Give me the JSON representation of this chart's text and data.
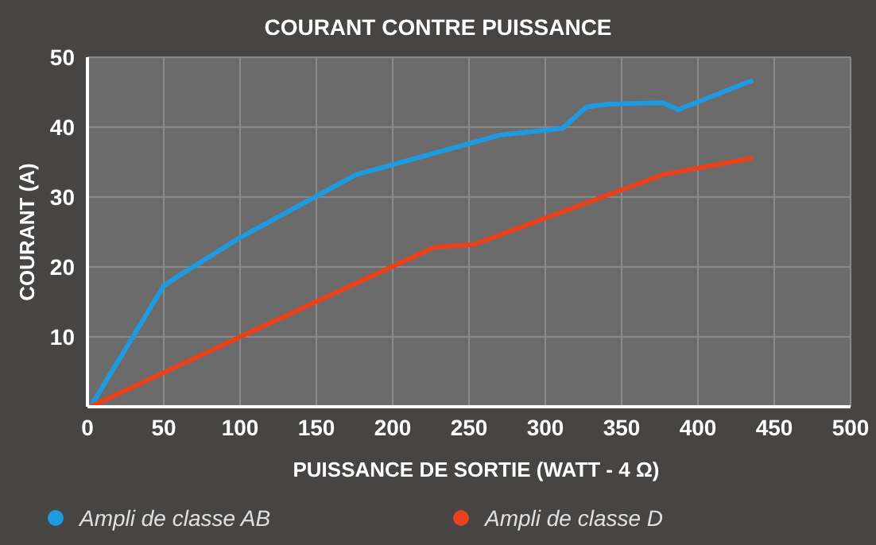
{
  "chart_data": {
    "type": "line",
    "title": "COURANT CONTRE PUISSANCE",
    "xlabel": "PUISSANCE DE SORTIE (WATT - 4 Ω)",
    "ylabel": "COURANT (A)",
    "series": [
      {
        "name": "Ampli de classe AB",
        "color": "#1e9be0",
        "x": [
          2,
          50,
          61,
          100,
          176,
          271,
          311,
          327,
          342,
          377,
          387,
          436
        ],
        "values": [
          0,
          17.3,
          18.9,
          24.2,
          33.2,
          38.9,
          39.8,
          42.9,
          43.3,
          43.5,
          42.5,
          46.7
        ]
      },
      {
        "name": "Ampli de classe D",
        "color": "#e8421c",
        "x": [
          2,
          100,
          227,
          253,
          377,
          436
        ],
        "values": [
          0,
          10,
          22.8,
          23.2,
          33.2,
          35.6
        ]
      }
    ],
    "xlim": [
      0,
      500
    ],
    "xticks": [
      0,
      50,
      100,
      150,
      200,
      250,
      300,
      350,
      400,
      450,
      500
    ],
    "ylim": [
      0,
      50
    ],
    "yticks": [
      10,
      20,
      30,
      40,
      50
    ],
    "grid": true,
    "legend": "bottom left",
    "marker": "none",
    "line_style": "solid"
  }
}
